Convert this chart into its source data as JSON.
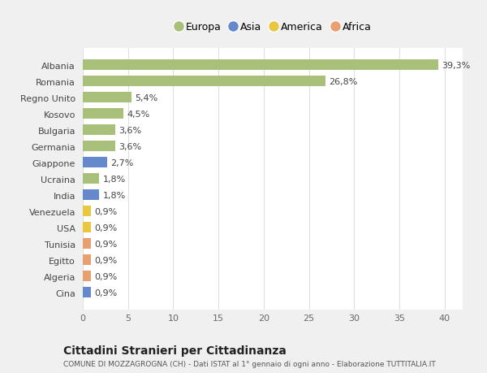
{
  "countries": [
    "Albania",
    "Romania",
    "Regno Unito",
    "Kosovo",
    "Bulgaria",
    "Germania",
    "Giappone",
    "Ucraina",
    "India",
    "Venezuela",
    "USA",
    "Tunisia",
    "Egitto",
    "Algeria",
    "Cina"
  ],
  "values": [
    39.3,
    26.8,
    5.4,
    4.5,
    3.6,
    3.6,
    2.7,
    1.8,
    1.8,
    0.9,
    0.9,
    0.9,
    0.9,
    0.9,
    0.9
  ],
  "labels": [
    "39,3%",
    "26,8%",
    "5,4%",
    "4,5%",
    "3,6%",
    "3,6%",
    "2,7%",
    "1,8%",
    "1,8%",
    "0,9%",
    "0,9%",
    "0,9%",
    "0,9%",
    "0,9%",
    "0,9%"
  ],
  "continents": [
    "Europa",
    "Europa",
    "Europa",
    "Europa",
    "Europa",
    "Europa",
    "Asia",
    "Europa",
    "Asia",
    "America",
    "America",
    "Africa",
    "Africa",
    "Africa",
    "Asia"
  ],
  "continent_colors": {
    "Europa": "#a8c07a",
    "Asia": "#6688cc",
    "America": "#e8c840",
    "Africa": "#e8a070"
  },
  "legend_order": [
    "Europa",
    "Asia",
    "America",
    "Africa"
  ],
  "xlim": [
    0,
    42
  ],
  "xticks": [
    0,
    5,
    10,
    15,
    20,
    25,
    30,
    35,
    40
  ],
  "title": "Cittadini Stranieri per Cittadinanza",
  "subtitle": "COMUNE DI MOZZAGROGNA (CH) - Dati ISTAT al 1° gennaio di ogni anno - Elaborazione TUTTITALIA.IT",
  "background_color": "#f0f0f0",
  "plot_background": "#ffffff",
  "grid_color": "#e0e0e0",
  "bar_height": 0.65,
  "label_fontsize": 8,
  "ytick_fontsize": 8,
  "xtick_fontsize": 8
}
